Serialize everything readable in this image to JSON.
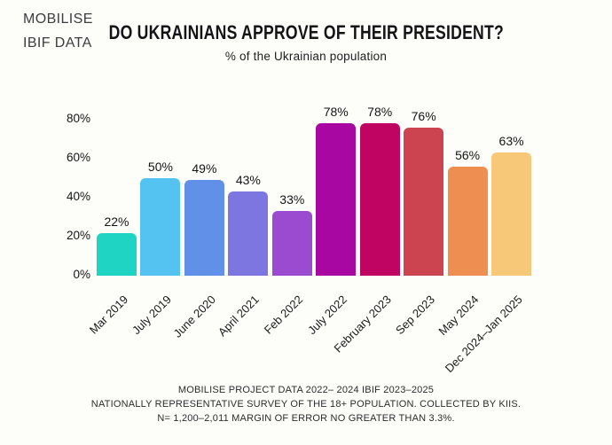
{
  "brand": {
    "line1": "MOBILISE",
    "line2": "IBIF DATA"
  },
  "header": {
    "title": "DO UKRAINIANS APPROVE OF THEIR PRESIDENT?",
    "subtitle": "% of the Ukrainian population"
  },
  "chart_data": {
    "type": "bar",
    "title": "DO UKRAINIANS APPROVE OF THEIR PRESIDENT?",
    "subtitle": "% of the Ukrainian population",
    "categories": [
      "Mar 2019",
      "July 2019",
      "June 2020",
      "April 2021",
      "Feb 2022",
      "July 2022",
      "February 2023",
      "Sep 2023",
      "May 2024",
      "Dec 2024–Jan 2025"
    ],
    "values": [
      22,
      50,
      49,
      43,
      33,
      78,
      78,
      76,
      56,
      63
    ],
    "value_labels": [
      "22%",
      "50%",
      "49%",
      "43%",
      "33%",
      "78%",
      "78%",
      "76%",
      "56%",
      "63%"
    ],
    "bar_colors": [
      "#1fd4c2",
      "#55c3f2",
      "#6090e8",
      "#7d75e0",
      "#9b4bd0",
      "#a807a2",
      "#bf0462",
      "#cc4450",
      "#ee8e51",
      "#f7c877"
    ],
    "y_axis": {
      "max": 80,
      "ticks": [
        {
          "value": 0,
          "label": "0%"
        },
        {
          "value": 20,
          "label": "20%"
        },
        {
          "value": 40,
          "label": "40%"
        },
        {
          "value": 60,
          "label": "60%"
        },
        {
          "value": 80,
          "label": "80%"
        }
      ]
    },
    "xlabel": "",
    "ylabel": "",
    "grid": false,
    "legend": null
  },
  "footer": {
    "line1": "MOBILISE PROJECT DATA 2022– 2024 IBIF 2023–2025",
    "line2": "NATIONALLY REPRESENTATIVE SURVEY  OF THE 18+ POPULATION. COLLECTED BY KIIS.",
    "line3": "N= 1,200–2,011 MARGIN OF ERROR NO GREATER THAN 3.3%."
  }
}
